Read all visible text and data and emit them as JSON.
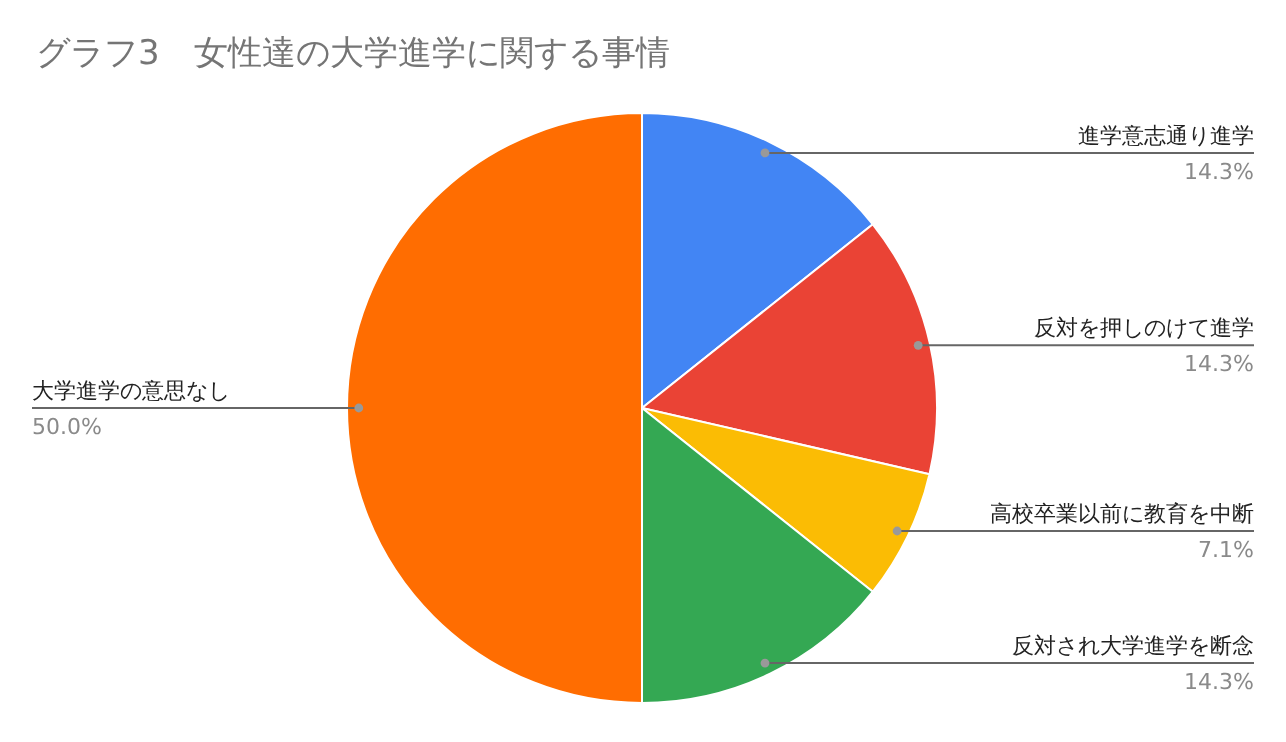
{
  "chart_data": {
    "type": "pie",
    "title": "グラフ3　女性達の大学進学に関する事情",
    "categories": [
      "進学意志通り進学",
      "反対を押しのけて進学",
      "高校卒業以前に教育を中断",
      "反対され大学進学を断念",
      "大学進学の意思なし"
    ],
    "values": [
      14.3,
      14.3,
      7.1,
      14.3,
      50.0
    ],
    "value_labels": [
      "14.3%",
      "14.3%",
      "7.1%",
      "14.3%",
      "50.0%"
    ],
    "colors": [
      "#4285f4",
      "#ea4335",
      "#fbbc04",
      "#34a853",
      "#ff6d01"
    ],
    "legend": false
  }
}
